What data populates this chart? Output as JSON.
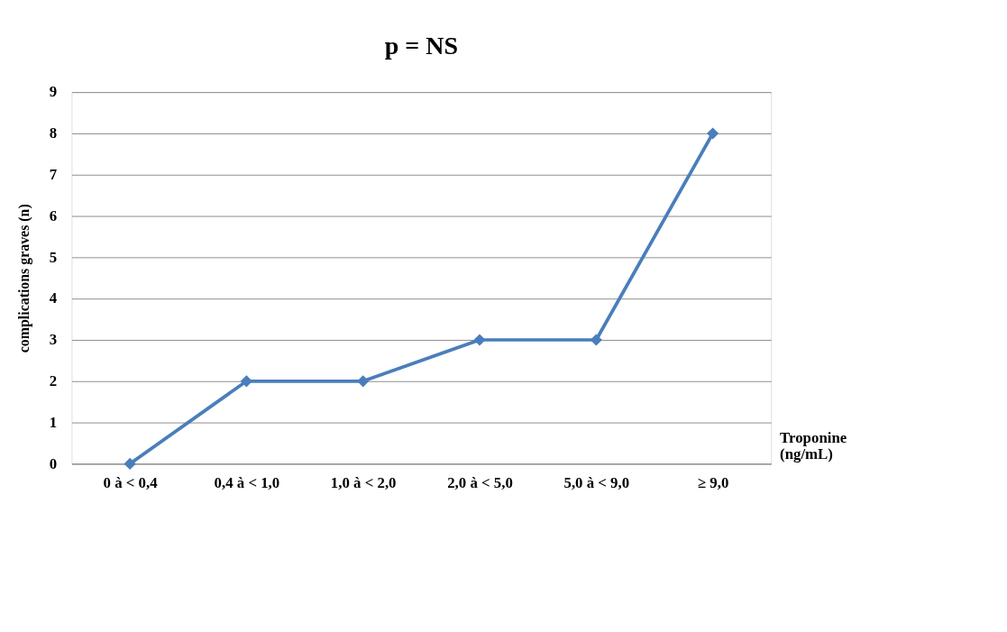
{
  "chart_data": {
    "type": "line",
    "title": "p = NS",
    "xlabel": "Troponine (ng/mL)",
    "ylabel": "complications graves (n)",
    "categories": [
      "0 à < 0,4",
      "0,4 à < 1,0",
      "1,0 à < 2,0",
      "2,0 à < 5,0",
      "5,0 à < 9,0",
      "≥ 9,0"
    ],
    "series": [
      {
        "color": "#4a7ebb",
        "values": [
          0,
          2,
          2,
          3,
          3,
          8
        ]
      }
    ],
    "ylim": [
      0,
      9
    ],
    "yticks": [
      0,
      1,
      2,
      3,
      4,
      5,
      6,
      7,
      8,
      9
    ],
    "grid": "y",
    "marker": "diamond",
    "line_style": "solid"
  }
}
